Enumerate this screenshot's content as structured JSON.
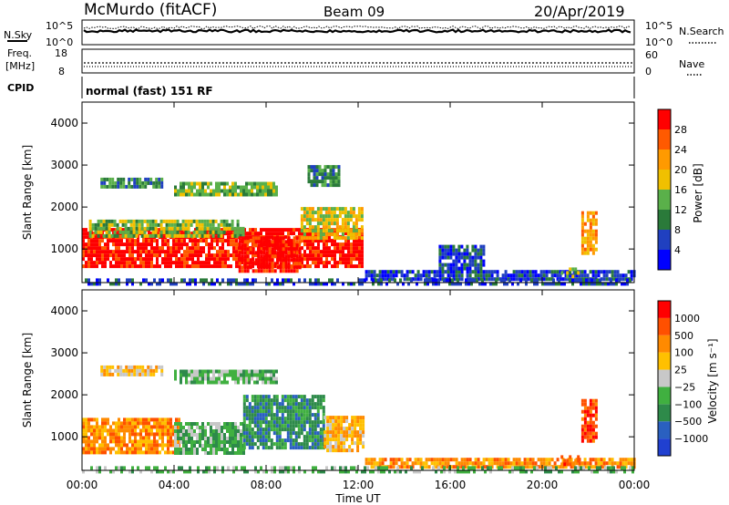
{
  "header": {
    "station": "McMurdo (fitACF)",
    "beam": "Beam 09",
    "date": "20/Apr/2019"
  },
  "top_panels": {
    "nsky_label": "N.Sky",
    "nsky_ticks": [
      "10^5",
      "10^0"
    ],
    "nsearch_label": "N.Search",
    "nsearch_ticks": [
      "10^5",
      "10^0"
    ],
    "freq_label": "Freq.",
    "freq_unit": "[MHz]",
    "freq_ticks": [
      "18",
      "8"
    ],
    "nave_label": "Nave",
    "nave_ticks": [
      "60",
      "0"
    ],
    "cpid_label": "CPID",
    "cpid_value": "normal (fast) 151 RF"
  },
  "chart_data": [
    {
      "type": "heatmap",
      "ylabel": "Slant Range [km]",
      "xlabel": "Time UT",
      "xlim": [
        0,
        24
      ],
      "ylim": [
        200,
        4500
      ],
      "x_ticks": [
        "00:00",
        "04:00",
        "08:00",
        "12:00",
        "16:00",
        "20:00",
        "00:00"
      ],
      "y_ticks": [
        1000,
        2000,
        3000,
        4000
      ],
      "colorbar": {
        "label": "Power [dB]",
        "ticks": [
          "4",
          "8",
          "12",
          "16",
          "20",
          "24",
          "28"
        ],
        "colors": [
          "#0000ff",
          "#2040c0",
          "#2a7a3a",
          "#5ab04a",
          "#f0c000",
          "#ff9a00",
          "#ff5a00",
          "#ff0000"
        ]
      },
      "regions": [
        {
          "t0": 0.0,
          "t1": 12.2,
          "r0": 600,
          "r1": 1500,
          "level": 7
        },
        {
          "t0": 0.3,
          "t1": 7.0,
          "r0": 1300,
          "r1": 1700,
          "level": 3
        },
        {
          "t0": 6.8,
          "t1": 9.5,
          "r0": 450,
          "r1": 1300,
          "level": 7
        },
        {
          "t0": 9.5,
          "t1": 12.2,
          "r0": 1300,
          "r1": 2000,
          "level": 4
        },
        {
          "t0": 0.8,
          "t1": 3.5,
          "r0": 2450,
          "r1": 2700,
          "level": 2
        },
        {
          "t0": 4.0,
          "t1": 8.5,
          "r0": 2300,
          "r1": 2600,
          "level": 3
        },
        {
          "t0": 9.8,
          "t1": 11.2,
          "r0": 2550,
          "r1": 3000,
          "level": 2
        },
        {
          "t0": 12.3,
          "t1": 24,
          "r0": 250,
          "r1": 500,
          "level": 1
        },
        {
          "t0": 15.5,
          "t1": 17.5,
          "r0": 500,
          "r1": 1100,
          "level": 1
        },
        {
          "t0": 21.7,
          "t1": 22.3,
          "r0": 900,
          "r1": 1900,
          "level": 5
        },
        {
          "t0": 20.8,
          "t1": 21.6,
          "r0": 380,
          "r1": 560,
          "level": 3
        },
        {
          "t0": 0.0,
          "t1": 24,
          "r0": 180,
          "r1": 300,
          "level": 1
        }
      ]
    },
    {
      "type": "heatmap",
      "ylabel": "Slant Range [km]",
      "xlabel": "Time UT",
      "xlim": [
        0,
        24
      ],
      "ylim": [
        200,
        4500
      ],
      "x_ticks": [
        "00:00",
        "04:00",
        "08:00",
        "12:00",
        "16:00",
        "20:00",
        "00:00"
      ],
      "y_ticks": [
        1000,
        2000,
        3000,
        4000
      ],
      "colorbar": {
        "label": "Velocity [m s⁻¹]",
        "ticks": [
          "1000",
          "500",
          "100",
          "25",
          "−25",
          "−100",
          "−500",
          "−1000"
        ],
        "colors": [
          "#2040d0",
          "#2a60c0",
          "#2e8a4a",
          "#40b040",
          "#c8c8c8",
          "#ffc000",
          "#ff8a00",
          "#ff5000",
          "#ff0000"
        ]
      },
      "regions": [
        {
          "t0": 0.0,
          "t1": 4.2,
          "r0": 650,
          "r1": 1450,
          "level": 6
        },
        {
          "t0": 4.0,
          "t1": 7.0,
          "r0": 600,
          "r1": 1350,
          "level": 3
        },
        {
          "t0": 7.0,
          "t1": 10.5,
          "r0": 750,
          "r1": 2000,
          "level": 2
        },
        {
          "t0": 10.5,
          "t1": 12.2,
          "r0": 700,
          "r1": 1500,
          "level": 5
        },
        {
          "t0": 0.8,
          "t1": 3.5,
          "r0": 2450,
          "r1": 2700,
          "level": 5
        },
        {
          "t0": 4.0,
          "t1": 8.5,
          "r0": 2300,
          "r1": 2600,
          "level": 3
        },
        {
          "t0": 12.3,
          "t1": 24,
          "r0": 250,
          "r1": 500,
          "level": 6
        },
        {
          "t0": 21.7,
          "t1": 22.4,
          "r0": 900,
          "r1": 1900,
          "level": 7
        },
        {
          "t0": 20.8,
          "t1": 21.6,
          "r0": 380,
          "r1": 560,
          "level": 7
        },
        {
          "t0": 0.0,
          "t1": 24,
          "r0": 180,
          "r1": 300,
          "level": 3
        }
      ]
    }
  ]
}
